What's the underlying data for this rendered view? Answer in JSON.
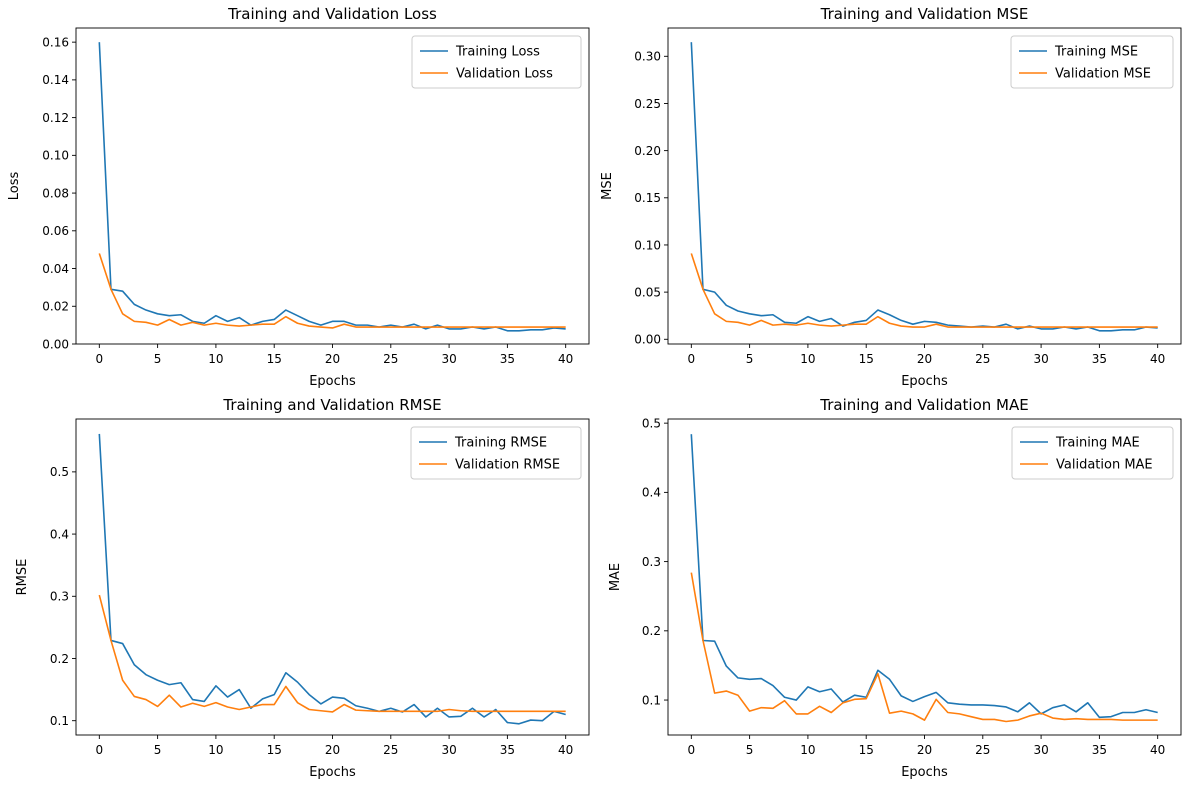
{
  "colors": {
    "training": "#1f77b4",
    "validation": "#ff7f0e"
  },
  "chart_data": [
    {
      "type": "line",
      "title": "Training and Validation Loss",
      "xlabel": "Epochs",
      "ylabel": "Loss",
      "xlim": [
        -2,
        42
      ],
      "ylim": [
        0,
        0.1675
      ],
      "xticks": [
        0,
        5,
        10,
        15,
        20,
        25,
        30,
        35,
        40
      ],
      "xtick_labels": [
        "0",
        "5",
        "10",
        "15",
        "20",
        "25",
        "30",
        "35",
        "40"
      ],
      "yticks": [
        0,
        0.02,
        0.04,
        0.06,
        0.08,
        0.1,
        0.12,
        0.14,
        0.16
      ],
      "ytick_labels": [
        "0.00",
        "0.02",
        "0.04",
        "0.06",
        "0.08",
        "0.10",
        "0.12",
        "0.14",
        "0.16"
      ],
      "legend": "top-right",
      "grid": false,
      "x": [
        0,
        1,
        2,
        3,
        4,
        5,
        6,
        7,
        8,
        9,
        10,
        11,
        12,
        13,
        14,
        15,
        16,
        17,
        18,
        19,
        20,
        21,
        22,
        23,
        24,
        25,
        26,
        27,
        28,
        29,
        30,
        31,
        32,
        33,
        34,
        35,
        36,
        37,
        38,
        39,
        40
      ],
      "series": [
        {
          "name": "Training Loss",
          "values": [
            0.16,
            0.029,
            0.028,
            0.021,
            0.018,
            0.016,
            0.015,
            0.0155,
            0.012,
            0.011,
            0.015,
            0.012,
            0.014,
            0.01,
            0.012,
            0.013,
            0.018,
            0.015,
            0.012,
            0.01,
            0.012,
            0.012,
            0.01,
            0.01,
            0.009,
            0.01,
            0.009,
            0.0105,
            0.008,
            0.01,
            0.008,
            0.008,
            0.009,
            0.008,
            0.009,
            0.007,
            0.007,
            0.0075,
            0.0075,
            0.0085,
            0.008
          ]
        },
        {
          "name": "Validation Loss",
          "values": [
            0.048,
            0.029,
            0.016,
            0.012,
            0.0115,
            0.01,
            0.013,
            0.01,
            0.0115,
            0.01,
            0.011,
            0.01,
            0.0095,
            0.01,
            0.0105,
            0.0105,
            0.0145,
            0.011,
            0.0095,
            0.009,
            0.0085,
            0.0105,
            0.009,
            0.009,
            0.009,
            0.009,
            0.009,
            0.009,
            0.009,
            0.009,
            0.009,
            0.009,
            0.009,
            0.009,
            0.009,
            0.009,
            0.009,
            0.009,
            0.009,
            0.009,
            0.009
          ]
        }
      ]
    },
    {
      "type": "line",
      "title": "Training and Validation MSE",
      "xlabel": "Epochs",
      "ylabel": "MSE",
      "xlim": [
        -2,
        42
      ],
      "ylim": [
        -0.005,
        0.33
      ],
      "xticks": [
        0,
        5,
        10,
        15,
        20,
        25,
        30,
        35,
        40
      ],
      "xtick_labels": [
        "0",
        "5",
        "10",
        "15",
        "20",
        "25",
        "30",
        "35",
        "40"
      ],
      "yticks": [
        0,
        0.05,
        0.1,
        0.15,
        0.2,
        0.25,
        0.3
      ],
      "ytick_labels": [
        "0.00",
        "0.05",
        "0.10",
        "0.15",
        "0.20",
        "0.25",
        "0.30"
      ],
      "legend": "top-right",
      "grid": false,
      "x": [
        0,
        1,
        2,
        3,
        4,
        5,
        6,
        7,
        8,
        9,
        10,
        11,
        12,
        13,
        14,
        15,
        16,
        17,
        18,
        19,
        20,
        21,
        22,
        23,
        24,
        25,
        26,
        27,
        28,
        29,
        30,
        31,
        32,
        33,
        34,
        35,
        36,
        37,
        38,
        39,
        40
      ],
      "series": [
        {
          "name": "Training MSE",
          "values": [
            0.315,
            0.053,
            0.05,
            0.036,
            0.03,
            0.027,
            0.025,
            0.026,
            0.018,
            0.017,
            0.024,
            0.019,
            0.022,
            0.014,
            0.018,
            0.02,
            0.031,
            0.026,
            0.02,
            0.016,
            0.019,
            0.018,
            0.015,
            0.014,
            0.013,
            0.014,
            0.013,
            0.016,
            0.011,
            0.014,
            0.011,
            0.011,
            0.013,
            0.011,
            0.013,
            0.009,
            0.009,
            0.01,
            0.01,
            0.013,
            0.012
          ]
        },
        {
          "name": "Validation MSE",
          "values": [
            0.091,
            0.053,
            0.027,
            0.019,
            0.018,
            0.015,
            0.02,
            0.015,
            0.016,
            0.015,
            0.017,
            0.015,
            0.014,
            0.015,
            0.016,
            0.016,
            0.024,
            0.017,
            0.014,
            0.013,
            0.013,
            0.016,
            0.013,
            0.013,
            0.013,
            0.013,
            0.013,
            0.013,
            0.013,
            0.013,
            0.013,
            0.013,
            0.013,
            0.013,
            0.013,
            0.013,
            0.013,
            0.013,
            0.013,
            0.013,
            0.013
          ]
        }
      ]
    },
    {
      "type": "line",
      "title": "Training and Validation RMSE",
      "xlabel": "Epochs",
      "ylabel": "RMSE",
      "xlim": [
        -2,
        42
      ],
      "ylim": [
        0.077,
        0.585
      ],
      "xticks": [
        0,
        5,
        10,
        15,
        20,
        25,
        30,
        35,
        40
      ],
      "xtick_labels": [
        "0",
        "5",
        "10",
        "15",
        "20",
        "25",
        "30",
        "35",
        "40"
      ],
      "yticks": [
        0.1,
        0.2,
        0.3,
        0.4,
        0.5
      ],
      "ytick_labels": [
        "0.1",
        "0.2",
        "0.3",
        "0.4",
        "0.5"
      ],
      "legend": "top-right",
      "grid": false,
      "x": [
        0,
        1,
        2,
        3,
        4,
        5,
        6,
        7,
        8,
        9,
        10,
        11,
        12,
        13,
        14,
        15,
        16,
        17,
        18,
        19,
        20,
        21,
        22,
        23,
        24,
        25,
        26,
        27,
        28,
        29,
        30,
        31,
        32,
        33,
        34,
        35,
        36,
        37,
        38,
        39,
        40
      ],
      "series": [
        {
          "name": "Training RMSE",
          "values": [
            0.561,
            0.229,
            0.224,
            0.19,
            0.174,
            0.165,
            0.158,
            0.161,
            0.134,
            0.131,
            0.156,
            0.138,
            0.15,
            0.12,
            0.135,
            0.142,
            0.177,
            0.162,
            0.142,
            0.127,
            0.138,
            0.136,
            0.124,
            0.12,
            0.115,
            0.12,
            0.114,
            0.126,
            0.106,
            0.12,
            0.106,
            0.107,
            0.12,
            0.106,
            0.118,
            0.097,
            0.095,
            0.101,
            0.1,
            0.115,
            0.11
          ]
        },
        {
          "name": "Validation RMSE",
          "values": [
            0.302,
            0.229,
            0.165,
            0.139,
            0.134,
            0.123,
            0.141,
            0.122,
            0.128,
            0.123,
            0.129,
            0.122,
            0.118,
            0.122,
            0.126,
            0.126,
            0.155,
            0.129,
            0.118,
            0.116,
            0.114,
            0.126,
            0.117,
            0.116,
            0.115,
            0.115,
            0.115,
            0.115,
            0.115,
            0.115,
            0.118,
            0.116,
            0.115,
            0.115,
            0.115,
            0.115,
            0.115,
            0.115,
            0.115,
            0.115,
            0.115
          ]
        }
      ]
    },
    {
      "type": "line",
      "title": "Training and Validation MAE",
      "xlabel": "Epochs",
      "ylabel": "MAE",
      "xlim": [
        -2,
        42
      ],
      "ylim": [
        0.0495,
        0.506
      ],
      "xticks": [
        0,
        5,
        10,
        15,
        20,
        25,
        30,
        35,
        40
      ],
      "xtick_labels": [
        "0",
        "5",
        "10",
        "15",
        "20",
        "25",
        "30",
        "35",
        "40"
      ],
      "yticks": [
        0.1,
        0.2,
        0.3,
        0.4,
        0.5
      ],
      "ytick_labels": [
        "0.1",
        "0.2",
        "0.3",
        "0.4",
        "0.5"
      ],
      "legend": "top-right",
      "grid": false,
      "x": [
        0,
        1,
        2,
        3,
        4,
        5,
        6,
        7,
        8,
        9,
        10,
        11,
        12,
        13,
        14,
        15,
        16,
        17,
        18,
        19,
        20,
        21,
        22,
        23,
        24,
        25,
        26,
        27,
        28,
        29,
        30,
        31,
        32,
        33,
        34,
        35,
        36,
        37,
        38,
        39,
        40
      ],
      "series": [
        {
          "name": "Training MAE",
          "values": [
            0.484,
            0.186,
            0.185,
            0.149,
            0.132,
            0.13,
            0.131,
            0.121,
            0.104,
            0.1,
            0.119,
            0.112,
            0.116,
            0.097,
            0.107,
            0.104,
            0.143,
            0.13,
            0.106,
            0.098,
            0.105,
            0.111,
            0.096,
            0.094,
            0.093,
            0.093,
            0.092,
            0.09,
            0.083,
            0.096,
            0.08,
            0.089,
            0.093,
            0.083,
            0.096,
            0.075,
            0.076,
            0.082,
            0.082,
            0.086,
            0.082
          ]
        },
        {
          "name": "Validation MAE",
          "values": [
            0.284,
            0.186,
            0.11,
            0.113,
            0.107,
            0.084,
            0.089,
            0.088,
            0.099,
            0.08,
            0.08,
            0.091,
            0.082,
            0.096,
            0.101,
            0.102,
            0.138,
            0.081,
            0.084,
            0.08,
            0.071,
            0.101,
            0.082,
            0.08,
            0.076,
            0.072,
            0.072,
            0.069,
            0.071,
            0.077,
            0.081,
            0.074,
            0.072,
            0.073,
            0.072,
            0.072,
            0.072,
            0.071,
            0.071,
            0.071,
            0.071
          ]
        }
      ]
    }
  ]
}
